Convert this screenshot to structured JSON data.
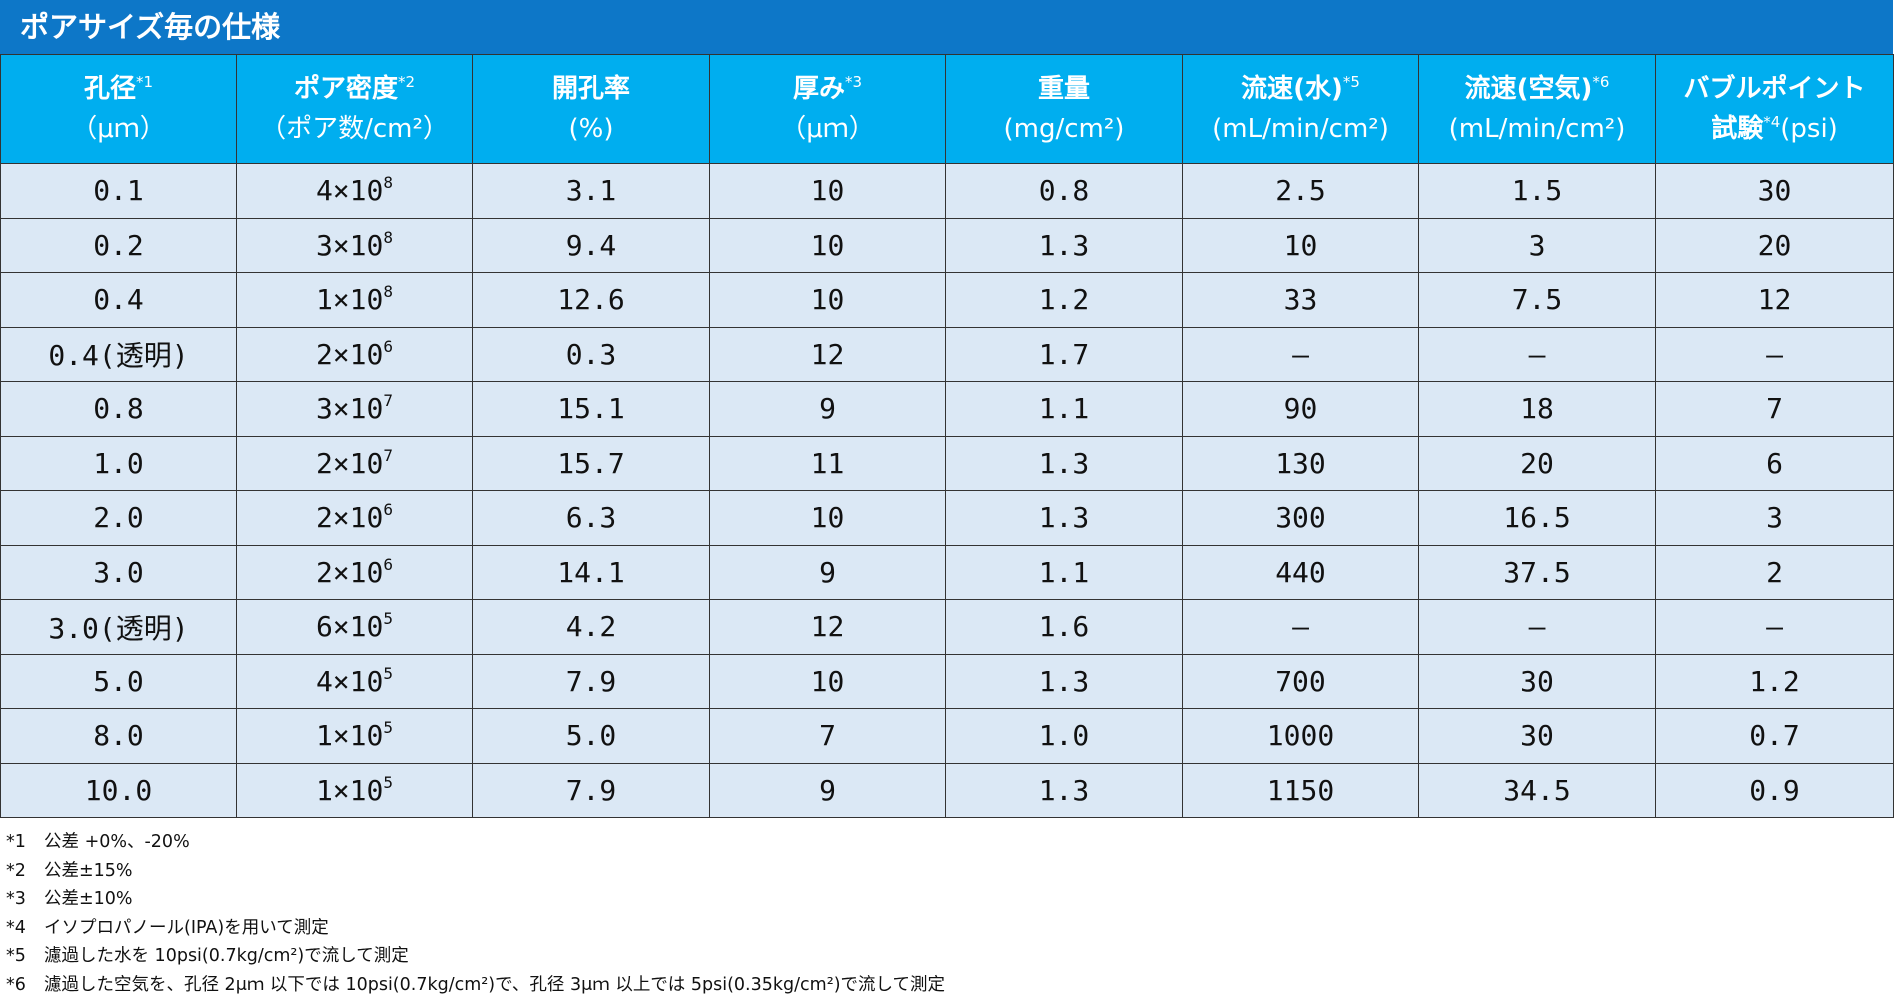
{
  "title": "ポアサイズ毎の仕様",
  "headers": [
    {
      "l1": "孔径",
      "sup": "*1",
      "l2": "（μｍ）"
    },
    {
      "l1": "ポア密度",
      "sup": "*2",
      "l2": "（ポア数/cm²）"
    },
    {
      "l1": "開孔率",
      "sup": "",
      "l2": "(%)"
    },
    {
      "l1": "厚み",
      "sup": "*3",
      "l2": "（μｍ）"
    },
    {
      "l1": "重量",
      "sup": "",
      "l2": "(mg/cm²)"
    },
    {
      "l1": "流速(水)",
      "sup": "*5",
      "l2": "(mL/min/cm²)"
    },
    {
      "l1": "流速(空気)",
      "sup": "*6",
      "l2": "(mL/min/cm²)"
    },
    {
      "l1": "バブルポイント",
      "sup": "",
      "l2a": "試験",
      "l2sup": "*4",
      "l2b": "(psi)"
    }
  ],
  "rows": [
    {
      "pore": "0.1",
      "dens_base": "4×10",
      "dens_exp": "8",
      "open": "3.1",
      "thick": "10",
      "weight": "0.8",
      "water": "2.5",
      "air": "1.5",
      "bubble": "30"
    },
    {
      "pore": "0.2",
      "dens_base": "3×10",
      "dens_exp": "8",
      "open": "9.4",
      "thick": "10",
      "weight": "1.3",
      "water": "10",
      "air": "3",
      "bubble": "20"
    },
    {
      "pore": "0.4",
      "dens_base": "1×10",
      "dens_exp": "8",
      "open": "12.6",
      "thick": "10",
      "weight": "1.2",
      "water": "33",
      "air": "7.5",
      "bubble": "12"
    },
    {
      "pore": "0.4(透明)",
      "dens_base": "2×10",
      "dens_exp": "6",
      "open": "0.3",
      "thick": "12",
      "weight": "1.7",
      "water": "–",
      "air": "–",
      "bubble": "–"
    },
    {
      "pore": "0.8",
      "dens_base": "3×10",
      "dens_exp": "7",
      "open": "15.1",
      "thick": "9",
      "weight": "1.1",
      "water": "90",
      "air": "18",
      "bubble": "7"
    },
    {
      "pore": "1.0",
      "dens_base": "2×10",
      "dens_exp": "7",
      "open": "15.7",
      "thick": "11",
      "weight": "1.3",
      "water": "130",
      "air": "20",
      "bubble": "6"
    },
    {
      "pore": "2.0",
      "dens_base": "2×10",
      "dens_exp": "6",
      "open": "6.3",
      "thick": "10",
      "weight": "1.3",
      "water": "300",
      "air": "16.5",
      "bubble": "3"
    },
    {
      "pore": "3.0",
      "dens_base": "2×10",
      "dens_exp": "6",
      "open": "14.1",
      "thick": "9",
      "weight": "1.1",
      "water": "440",
      "air": "37.5",
      "bubble": "2"
    },
    {
      "pore": "3.0(透明)",
      "dens_base": "6×10",
      "dens_exp": "5",
      "open": "4.2",
      "thick": "12",
      "weight": "1.6",
      "water": "–",
      "air": "–",
      "bubble": "–"
    },
    {
      "pore": "5.0",
      "dens_base": "4×10",
      "dens_exp": "5",
      "open": "7.9",
      "thick": "10",
      "weight": "1.3",
      "water": "700",
      "air": "30",
      "bubble": "1.2"
    },
    {
      "pore": "8.0",
      "dens_base": "1×10",
      "dens_exp": "5",
      "open": "5.0",
      "thick": "7",
      "weight": "1.0",
      "water": "1000",
      "air": "30",
      "bubble": "0.7"
    },
    {
      "pore": "10.0",
      "dens_base": "1×10",
      "dens_exp": "5",
      "open": "7.9",
      "thick": "9",
      "weight": "1.3",
      "water": "1150",
      "air": "34.5",
      "bubble": "0.9"
    }
  ],
  "notes": [
    {
      "mark": "*1",
      "text": "公差 +0%、-20%"
    },
    {
      "mark": "*2",
      "text": "公差±15%"
    },
    {
      "mark": "*3",
      "text": "公差±10%"
    },
    {
      "mark": "*4",
      "text": "イソプロパノール(IPA)を用いて測定"
    },
    {
      "mark": "*5",
      "text": "濾過した水を 10psi(0.7kg/cm²)で流して測定"
    },
    {
      "mark": "*6",
      "text": "濾過した空気を、孔径 2μｍ 以下では 10psi(0.7kg/cm²)で、孔径 3μｍ 以上では 5psi(0.35kg/cm²)で流して測定"
    }
  ]
}
